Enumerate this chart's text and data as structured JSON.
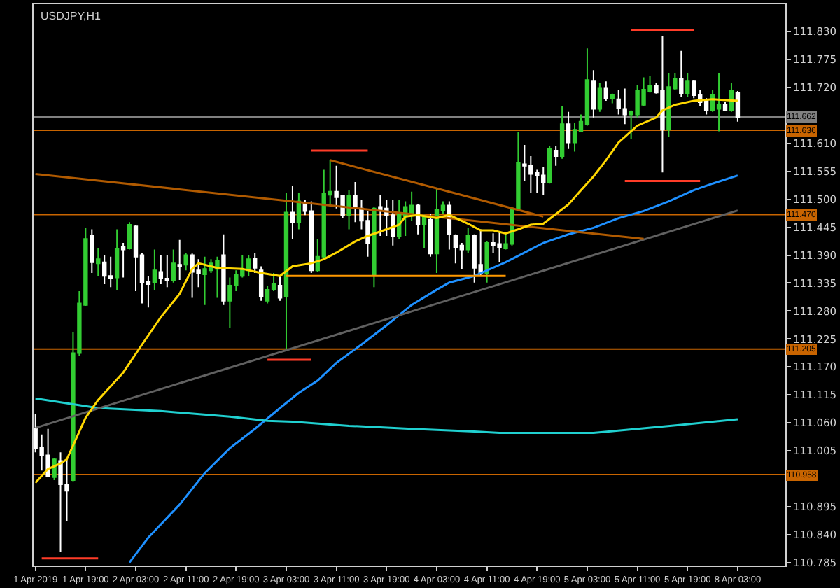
{
  "chart_data": {
    "type": "candlestick",
    "title": "USDJPY,H1",
    "categories": [
      "1 Apr 2019",
      null,
      null,
      null,
      null,
      null,
      null,
      null,
      "1 Apr 19:00",
      null,
      null,
      null,
      null,
      null,
      null,
      null,
      "2 Apr 03:00",
      null,
      null,
      null,
      null,
      null,
      null,
      null,
      "2 Apr 11:00",
      null,
      null,
      null,
      null,
      null,
      null,
      null,
      "2 Apr 19:00",
      null,
      null,
      null,
      null,
      null,
      null,
      null,
      "3 Apr 03:00",
      null,
      null,
      null,
      null,
      null,
      null,
      null,
      "3 Apr 11:00",
      null,
      null,
      null,
      null,
      null,
      null,
      null,
      "3 Apr 19:00",
      null,
      null,
      null,
      null,
      null,
      null,
      null,
      "4 Apr 03:00",
      null,
      null,
      null,
      null,
      null,
      null,
      null,
      "4 Apr 11:00",
      null,
      null,
      null,
      null,
      null,
      null,
      null,
      "4 Apr 19:00",
      null,
      null,
      null,
      null,
      null,
      null,
      null,
      "5 Apr 03:00",
      null,
      null,
      null,
      null,
      null,
      null,
      null,
      "5 Apr 11:00",
      null,
      null,
      null,
      null,
      null,
      null,
      null,
      "5 Apr 19:00",
      null,
      null,
      null,
      null,
      null,
      null,
      null,
      "8 Apr 03:00"
    ],
    "ohlc": [
      [
        111.048,
        111.078,
        111.002,
        111.01
      ],
      [
        111.012,
        111.037,
        110.966,
        110.996
      ],
      [
        110.996,
        111.048,
        110.953,
        110.955
      ],
      [
        110.953,
        110.99,
        110.947,
        110.988
      ],
      [
        110.985,
        111.002,
        110.806,
        110.939
      ],
      [
        110.939,
        110.988,
        110.866,
        110.926
      ],
      [
        110.947,
        111.238,
        110.945,
        111.197
      ],
      [
        111.197,
        111.319,
        111.192,
        111.295
      ],
      [
        111.292,
        111.444,
        111.29,
        111.422
      ],
      [
        111.428,
        111.441,
        111.355,
        111.376
      ],
      [
        111.374,
        111.403,
        111.349,
        111.382
      ],
      [
        111.376,
        111.39,
        111.333,
        111.349
      ],
      [
        111.349,
        111.387,
        111.327,
        111.344
      ],
      [
        111.346,
        111.441,
        111.322,
        111.403
      ],
      [
        111.406,
        111.414,
        111.346,
        111.401
      ],
      [
        111.403,
        111.455,
        111.401,
        111.45
      ],
      [
        111.447,
        111.45,
        111.319,
        111.387
      ],
      [
        111.39,
        111.395,
        111.295,
        111.336
      ],
      [
        111.338,
        111.349,
        111.287,
        111.333
      ],
      [
        111.336,
        111.401,
        111.322,
        111.36
      ],
      [
        111.357,
        111.39,
        111.333,
        111.344
      ],
      [
        111.344,
        111.39,
        111.327,
        111.341
      ],
      [
        111.341,
        111.401,
        111.336,
        111.374
      ],
      [
        111.371,
        111.42,
        111.341,
        111.368
      ],
      [
        111.371,
        111.395,
        111.36,
        111.39
      ],
      [
        111.39,
        111.393,
        111.306,
        111.357
      ],
      [
        111.36,
        111.382,
        111.327,
        111.355
      ],
      [
        111.352,
        111.387,
        111.292,
        111.363
      ],
      [
        111.36,
        111.382,
        111.355,
        111.374
      ],
      [
        111.363,
        111.387,
        111.306,
        111.379
      ],
      [
        111.39,
        111.431,
        111.292,
        111.3
      ],
      [
        111.3,
        111.346,
        111.246,
        111.33
      ],
      [
        111.33,
        111.36,
        111.319,
        111.352
      ],
      [
        111.349,
        111.39,
        111.346,
        111.36
      ],
      [
        111.36,
        111.39,
        111.349,
        111.382
      ],
      [
        111.384,
        111.395,
        111.355,
        111.365
      ],
      [
        111.36,
        111.368,
        111.3,
        111.308
      ],
      [
        111.3,
        111.33,
        111.295,
        111.322
      ],
      [
        111.322,
        111.355,
        111.319,
        111.333
      ],
      [
        111.33,
        111.349,
        111.3,
        111.306
      ],
      [
        111.308,
        111.512,
        111.205,
        111.474
      ],
      [
        111.474,
        111.526,
        111.422,
        111.455
      ],
      [
        111.455,
        111.512,
        111.441,
        111.496
      ],
      [
        111.493,
        111.499,
        111.469,
        111.477
      ],
      [
        111.477,
        111.496,
        111.355,
        111.36
      ],
      [
        111.36,
        111.422,
        111.357,
        111.387
      ],
      [
        111.387,
        111.558,
        111.382,
        111.512
      ],
      [
        111.509,
        111.577,
        111.485,
        111.515
      ],
      [
        111.515,
        111.566,
        111.482,
        111.504
      ],
      [
        111.507,
        111.509,
        111.463,
        111.469
      ],
      [
        111.469,
        111.518,
        111.441,
        111.507
      ],
      [
        111.507,
        111.534,
        111.455,
        111.485
      ],
      [
        111.482,
        111.499,
        111.441,
        111.458
      ],
      [
        111.458,
        111.477,
        111.387,
        111.414
      ],
      [
        111.352,
        111.485,
        111.327,
        111.482
      ],
      [
        111.485,
        111.509,
        111.428,
        111.479
      ],
      [
        111.482,
        111.499,
        111.428,
        111.469
      ],
      [
        111.469,
        111.499,
        111.409,
        111.428
      ],
      [
        111.428,
        111.499,
        111.422,
        111.471
      ],
      [
        111.466,
        111.496,
        111.428,
        111.485
      ],
      [
        111.471,
        111.515,
        111.458,
        111.488
      ],
      [
        111.488,
        111.491,
        111.431,
        111.45
      ],
      [
        111.45,
        111.471,
        111.403,
        111.466
      ],
      [
        111.46,
        111.471,
        111.387,
        111.393
      ],
      [
        111.393,
        111.523,
        111.355,
        111.479
      ],
      [
        111.479,
        111.496,
        111.471,
        111.488
      ],
      [
        111.488,
        111.496,
        111.401,
        111.431
      ],
      [
        111.428,
        111.431,
        111.374,
        111.406
      ],
      [
        111.409,
        111.414,
        111.363,
        111.401
      ],
      [
        111.401,
        111.444,
        111.395,
        111.428
      ],
      [
        111.428,
        111.431,
        111.336,
        111.365
      ],
      [
        111.371,
        111.441,
        111.349,
        111.355
      ],
      [
        111.355,
        111.417,
        111.336,
        111.414
      ],
      [
        111.414,
        111.433,
        111.395,
        111.409
      ],
      [
        111.412,
        111.436,
        111.376,
        111.406
      ],
      [
        111.403,
        111.436,
        111.401,
        111.412
      ],
      [
        111.412,
        111.485,
        111.409,
        111.482
      ],
      [
        111.482,
        111.632,
        111.477,
        111.572
      ],
      [
        111.569,
        111.607,
        111.536,
        111.566
      ],
      [
        111.566,
        111.585,
        111.512,
        111.55
      ],
      [
        111.553,
        111.558,
        111.512,
        111.547
      ],
      [
        111.547,
        111.564,
        111.509,
        111.534
      ],
      [
        111.534,
        111.605,
        111.531,
        111.599
      ],
      [
        111.596,
        111.605,
        111.566,
        111.585
      ],
      [
        111.585,
        111.683,
        111.58,
        111.648
      ],
      [
        111.648,
        111.672,
        111.599,
        111.612
      ],
      [
        111.612,
        111.651,
        111.594,
        111.637
      ],
      [
        111.634,
        111.667,
        111.632,
        111.653
      ],
      [
        111.648,
        111.797,
        111.645,
        111.735
      ],
      [
        111.732,
        111.754,
        111.661,
        111.678
      ],
      [
        111.678,
        111.729,
        111.672,
        111.718
      ],
      [
        111.718,
        111.732,
        111.694,
        111.699
      ],
      [
        111.699,
        111.708,
        111.689,
        111.705
      ],
      [
        111.697,
        111.716,
        111.667,
        111.68
      ],
      [
        111.678,
        111.718,
        111.648,
        111.667
      ],
      [
        111.667,
        111.675,
        111.618,
        111.672
      ],
      [
        111.667,
        111.724,
        111.661,
        111.713
      ],
      [
        111.686,
        111.74,
        111.683,
        111.716
      ],
      [
        111.713,
        111.743,
        111.71,
        111.724
      ],
      [
        111.724,
        111.729,
        111.708,
        111.71
      ],
      [
        111.713,
        111.822,
        111.553,
        111.637
      ],
      [
        111.637,
        111.748,
        111.623,
        111.721
      ],
      [
        111.718,
        111.748,
        111.716,
        111.737
      ],
      [
        111.737,
        111.792,
        111.702,
        111.708
      ],
      [
        111.708,
        111.748,
        111.702,
        111.732
      ],
      [
        111.732,
        111.735,
        111.699,
        111.705
      ],
      [
        111.705,
        111.716,
        111.683,
        111.691
      ],
      [
        111.694,
        111.699,
        111.667,
        111.675
      ],
      [
        111.675,
        111.716,
        111.672,
        111.705
      ],
      [
        111.678,
        111.748,
        111.634,
        111.686
      ],
      [
        111.686,
        111.691,
        111.675,
        111.675
      ],
      [
        111.675,
        111.729,
        111.672,
        111.713
      ],
      [
        111.71,
        111.713,
        111.653,
        111.662
      ]
    ],
    "colors": [
      "#ffffff",
      "#ffffff",
      "#ffffff",
      "#32cd32",
      "#ffffff",
      "#ffffff",
      "#32cd32",
      "#32cd32",
      "#32cd32",
      "#ffffff",
      "#32cd32",
      "#ffffff",
      "#ffffff",
      "#32cd32",
      "#ffffff",
      "#32cd32",
      "#ffffff",
      "#ffffff",
      "#ffffff",
      "#32cd32",
      "#ffffff",
      "#ffffff",
      "#32cd32",
      "#ffffff",
      "#32cd32",
      "#ffffff",
      "#ffffff",
      "#32cd32",
      "#32cd32",
      "#32cd32",
      "#ffffff",
      "#32cd32",
      "#32cd32",
      "#32cd32",
      "#32cd32",
      "#ffffff",
      "#ffffff",
      "#32cd32",
      "#32cd32",
      "#ffffff",
      "#32cd32",
      "#ffffff",
      "#32cd32",
      "#ffffff",
      "#ffffff",
      "#32cd32",
      "#32cd32",
      "#32cd32",
      "#ffffff",
      "#ffffff",
      "#32cd32",
      "#ffffff",
      "#ffffff",
      "#ffffff",
      "#32cd32",
      "#ffffff",
      "#ffffff",
      "#ffffff",
      "#32cd32",
      "#32cd32",
      "#32cd32",
      "#ffffff",
      "#32cd32",
      "#ffffff",
      "#32cd32",
      "#32cd32",
      "#ffffff",
      "#ffffff",
      "#ffffff",
      "#32cd32",
      "#ffffff",
      "#ffffff",
      "#32cd32",
      "#ffffff",
      "#ffffff",
      "#32cd32",
      "#32cd32",
      "#32cd32",
      "#ffffff",
      "#ffffff",
      "#ffffff",
      "#ffffff",
      "#32cd32",
      "#ffffff",
      "#32cd32",
      "#ffffff",
      "#32cd32",
      "#32cd32",
      "#32cd32",
      "#ffffff",
      "#32cd32",
      "#ffffff",
      "#32cd32",
      "#ffffff",
      "#ffffff",
      "#32cd32",
      "#32cd32",
      "#32cd32",
      "#32cd32",
      "#ffffff",
      "#ffffff",
      "#32cd32",
      "#32cd32",
      "#ffffff",
      "#32cd32",
      "#ffffff",
      "#ffffff",
      "#ffffff",
      "#32cd32",
      "#32cd32",
      "#ffffff",
      "#32cd32",
      "#ffffff"
    ],
    "series": [
      {
        "type": "line",
        "color": "#1e90ff",
        "values": [
          null,
          null,
          null,
          null,
          null,
          null,
          null,
          null,
          null,
          null,
          null,
          null,
          null,
          null,
          null,
          110.785,
          null,
          null,
          110.834,
          null,
          null,
          null,
          null,
          110.899,
          null,
          null,
          null,
          110.961,
          null,
          null,
          null,
          111.01,
          null,
          null,
          null,
          111.048,
          null,
          null,
          null,
          111.089,
          null,
          null,
          111.119,
          null,
          null,
          111.143,
          null,
          null,
          111.178,
          null,
          null,
          null,
          111.214,
          null,
          null,
          null,
          111.252,
          null,
          null,
          null,
          111.292,
          null,
          null,
          null,
          111.322,
          null,
          111.336,
          null,
          null,
          null,
          111.349,
          null,
          111.36,
          null,
          null,
          111.376,
          null,
          null,
          111.395,
          null,
          null,
          111.414,
          null,
          null,
          null,
          111.431,
          null,
          null,
          null,
          111.444,
          null,
          null,
          null,
          111.463,
          null,
          null,
          null,
          111.477,
          null,
          null,
          null,
          111.496,
          null,
          null,
          null,
          111.518,
          null,
          null,
          111.531,
          null,
          null,
          null,
          111.547
        ]
      },
      {
        "type": "line",
        "color": "#20d0d0",
        "values": [
          111.108,
          null,
          null,
          null,
          null,
          null,
          null,
          null,
          null,
          null,
          111.089,
          null,
          null,
          null,
          null,
          null,
          null,
          null,
          null,
          null,
          111.083,
          null,
          null,
          null,
          null,
          null,
          null,
          null,
          null,
          null,
          null,
          111.072,
          null,
          null,
          null,
          null,
          null,
          111.064,
          null,
          null,
          null,
          111.062,
          null,
          null,
          null,
          null,
          null,
          null,
          null,
          null,
          111.054,
          null,
          null,
          null,
          null,
          null,
          null,
          null,
          null,
          null,
          111.048,
          null,
          null,
          null,
          null,
          null,
          null,
          null,
          null,
          null,
          111.043,
          null,
          null,
          null,
          111.04,
          null,
          null,
          null,
          null,
          null,
          null,
          111.04,
          null,
          null,
          null,
          null,
          null,
          null,
          null,
          111.04,
          null,
          null,
          null,
          null,
          null,
          null,
          111.048,
          null,
          null,
          null,
          null,
          null,
          null,
          111.056,
          null,
          null,
          null,
          null,
          null,
          null,
          null,
          null,
          111.067
        ]
      },
      {
        "type": "line",
        "color": "#606060",
        "values": [
          111.05,
          null,
          null,
          null,
          null,
          null,
          null,
          null,
          null,
          null,
          null,
          null,
          null,
          null,
          null,
          null,
          null,
          null,
          null,
          null,
          null,
          null,
          null,
          null,
          null,
          null,
          null,
          null,
          null,
          null,
          null,
          null,
          null,
          null,
          null,
          null,
          null,
          null,
          null,
          null,
          null,
          null,
          null,
          null,
          null,
          null,
          null,
          null,
          null,
          null,
          null,
          null,
          null,
          null,
          null,
          null,
          null,
          null,
          null,
          null,
          null,
          null,
          null,
          null,
          null,
          null,
          null,
          null,
          null,
          null,
          null,
          null,
          null,
          null,
          null,
          null,
          null,
          null,
          null,
          null,
          null,
          null,
          null,
          null,
          null,
          null,
          null,
          null,
          null,
          null,
          null,
          null,
          null,
          null,
          null,
          null,
          null,
          null,
          null,
          null,
          null,
          null,
          null,
          null,
          null,
          null,
          null,
          null,
          null,
          null,
          null,
          null,
          111.478
        ]
      },
      {
        "type": "line",
        "color": "#b05a00",
        "values": [
          111.55,
          null,
          null,
          null,
          null,
          null,
          null,
          null,
          null,
          null,
          null,
          null,
          null,
          null,
          null,
          null,
          null,
          null,
          null,
          null,
          null,
          null,
          null,
          null,
          null,
          null,
          null,
          null,
          null,
          null,
          null,
          null,
          null,
          null,
          null,
          null,
          null,
          null,
          null,
          null,
          null,
          null,
          null,
          null,
          null,
          null,
          null,
          null,
          null,
          null,
          null,
          null,
          null,
          null,
          null,
          null,
          null,
          null,
          null,
          null,
          null,
          null,
          null,
          null,
          null,
          null,
          null,
          null,
          null,
          null,
          null,
          null,
          null,
          null,
          null,
          null,
          null,
          null,
          null,
          null,
          null,
          null,
          null,
          null,
          null,
          null,
          null,
          null,
          null,
          null,
          null,
          null,
          null,
          null,
          null,
          null,
          null,
          111.422,
          null,
          null,
          null,
          null,
          null,
          null,
          null,
          null,
          null,
          null,
          null,
          null,
          null,
          null,
          null
        ]
      },
      {
        "type": "line",
        "color": "#b05a00",
        "values": [
          null,
          null,
          null,
          null,
          null,
          null,
          null,
          null,
          null,
          null,
          null,
          null,
          null,
          null,
          null,
          null,
          null,
          null,
          null,
          null,
          null,
          null,
          null,
          null,
          null,
          null,
          null,
          null,
          null,
          null,
          null,
          null,
          null,
          null,
          null,
          null,
          null,
          null,
          null,
          null,
          null,
          null,
          null,
          null,
          null,
          null,
          null,
          111.577,
          null,
          null,
          null,
          null,
          null,
          null,
          null,
          null,
          null,
          null,
          null,
          null,
          null,
          null,
          null,
          null,
          null,
          null,
          null,
          null,
          null,
          null,
          null,
          null,
          null,
          null,
          null,
          null,
          null,
          null,
          null,
          null,
          null,
          111.466,
          null,
          null,
          null,
          null,
          null,
          null,
          null,
          null,
          null,
          null,
          null,
          null,
          null,
          null,
          null,
          null,
          null,
          null,
          null,
          null,
          null,
          null,
          null,
          null,
          null,
          null,
          null,
          null,
          null,
          null,
          null
        ]
      },
      {
        "type": "line",
        "color": "#ff9900",
        "values": [
          null,
          null,
          null,
          null,
          null,
          null,
          null,
          null,
          null,
          null,
          null,
          null,
          null,
          null,
          null,
          null,
          null,
          null,
          null,
          null,
          null,
          null,
          null,
          null,
          null,
          null,
          null,
          null,
          null,
          null,
          null,
          null,
          null,
          null,
          null,
          null,
          null,
          null,
          null,
          null,
          111.349,
          null,
          null,
          null,
          null,
          null,
          null,
          null,
          null,
          null,
          null,
          null,
          null,
          null,
          null,
          null,
          null,
          null,
          null,
          null,
          null,
          null,
          null,
          null,
          null,
          null,
          null,
          null,
          null,
          null,
          null,
          null,
          null,
          null,
          null,
          111.349,
          null,
          null,
          null,
          null,
          null,
          null,
          null,
          null,
          null,
          null,
          null,
          null,
          null,
          null,
          null,
          null,
          null,
          null,
          null,
          null,
          null,
          null,
          null,
          null,
          null,
          null,
          null,
          null,
          null,
          null,
          null,
          null,
          null,
          null,
          null,
          null,
          null
        ]
      },
      {
        "type": "line",
        "color": "#ff3c28",
        "values": [
          null,
          110.793,
          null,
          null,
          null,
          null,
          null,
          null,
          null,
          null,
          110.793,
          null,
          null,
          null,
          null,
          null,
          null,
          null,
          null,
          null,
          null,
          null,
          null,
          null,
          null,
          null,
          null,
          null,
          null,
          null,
          null,
          null,
          null,
          null,
          null,
          null,
          null,
          null,
          null,
          null,
          null,
          null,
          null,
          null,
          null,
          null,
          null,
          null,
          null,
          null,
          null,
          null,
          null,
          null,
          null,
          null,
          null,
          null,
          null,
          null,
          null,
          null,
          null,
          null,
          null,
          null,
          null,
          null,
          null,
          null,
          null,
          null,
          null,
          null,
          null,
          null,
          null,
          null,
          null,
          null,
          null,
          null,
          null,
          null,
          null,
          null,
          null,
          null,
          null,
          null,
          null,
          null,
          null,
          null,
          null,
          null,
          null,
          null,
          null,
          null,
          null,
          null,
          null,
          null,
          null,
          null,
          null,
          null,
          null,
          null,
          null,
          null,
          null
        ]
      },
      {
        "type": "line",
        "color": "#ff3c28",
        "values": [
          null,
          null,
          null,
          null,
          null,
          null,
          null,
          null,
          null,
          null,
          null,
          null,
          null,
          null,
          null,
          null,
          null,
          null,
          null,
          null,
          null,
          null,
          null,
          null,
          null,
          null,
          null,
          null,
          null,
          null,
          null,
          null,
          null,
          null,
          null,
          null,
          null,
          111.184,
          null,
          null,
          null,
          null,
          null,
          null,
          111.184,
          null,
          null,
          null,
          null,
          null,
          null,
          null,
          null,
          null,
          null,
          null,
          null,
          null,
          null,
          null,
          null,
          null,
          null,
          null,
          null,
          null,
          null,
          null,
          null,
          null,
          null,
          null,
          null,
          null,
          null,
          null,
          null,
          null,
          null,
          null,
          null,
          null,
          null,
          null,
          null,
          null,
          null,
          null,
          null,
          null,
          null,
          null,
          null,
          null,
          null,
          null,
          null,
          null,
          null,
          null,
          null,
          null,
          null,
          null,
          null,
          null,
          null,
          null,
          null,
          null,
          null,
          null,
          null
        ]
      },
      {
        "type": "line",
        "color": "#ff3c28",
        "values": [
          null,
          null,
          null,
          null,
          null,
          null,
          null,
          null,
          null,
          null,
          null,
          null,
          null,
          null,
          null,
          null,
          null,
          null,
          null,
          null,
          null,
          null,
          null,
          null,
          null,
          null,
          null,
          null,
          null,
          null,
          null,
          null,
          null,
          null,
          null,
          null,
          null,
          null,
          null,
          null,
          null,
          null,
          null,
          null,
          111.596,
          null,
          null,
          null,
          null,
          null,
          null,
          null,
          null,
          111.596,
          null,
          null,
          null,
          null,
          null,
          null,
          null,
          null,
          null,
          null,
          null,
          null,
          null,
          null,
          null,
          null,
          null,
          null,
          null,
          null,
          null,
          null,
          null,
          null,
          null,
          null,
          null,
          null,
          null,
          null,
          null,
          null,
          null,
          null,
          null,
          null,
          null,
          null,
          null,
          null,
          null,
          null,
          null,
          null,
          null,
          null,
          null,
          null,
          null,
          null,
          null,
          null,
          null,
          null,
          null,
          null,
          null,
          null,
          null
        ]
      },
      {
        "type": "line",
        "color": "#ff3c28",
        "values": [
          null,
          null,
          null,
          null,
          null,
          null,
          null,
          null,
          null,
          null,
          null,
          null,
          null,
          null,
          null,
          null,
          null,
          null,
          null,
          null,
          null,
          null,
          null,
          null,
          null,
          null,
          null,
          null,
          null,
          null,
          null,
          null,
          null,
          null,
          null,
          null,
          null,
          null,
          null,
          null,
          null,
          null,
          null,
          null,
          null,
          null,
          null,
          null,
          null,
          null,
          null,
          null,
          null,
          null,
          null,
          null,
          null,
          null,
          null,
          null,
          null,
          null,
          null,
          null,
          null,
          null,
          null,
          null,
          null,
          null,
          null,
          null,
          null,
          null,
          null,
          null,
          null,
          null,
          null,
          null,
          null,
          null,
          null,
          null,
          null,
          null,
          null,
          null,
          null,
          null,
          null,
          null,
          null,
          null,
          null,
          111.833,
          null,
          null,
          null,
          null,
          null,
          null,
          null,
          null,
          null,
          111.833,
          null,
          null,
          null,
          null,
          null,
          null,
          null
        ]
      },
      {
        "type": "line",
        "color": "#ff3c28",
        "values": [
          null,
          null,
          null,
          null,
          null,
          null,
          null,
          null,
          null,
          null,
          null,
          null,
          null,
          null,
          null,
          null,
          null,
          null,
          null,
          null,
          null,
          null,
          null,
          null,
          null,
          null,
          null,
          null,
          null,
          null,
          null,
          null,
          null,
          null,
          null,
          null,
          null,
          null,
          null,
          null,
          null,
          null,
          null,
          null,
          null,
          null,
          null,
          null,
          null,
          null,
          null,
          null,
          null,
          null,
          null,
          null,
          null,
          null,
          null,
          null,
          null,
          null,
          null,
          null,
          null,
          null,
          null,
          null,
          null,
          null,
          null,
          null,
          null,
          null,
          null,
          null,
          null,
          null,
          null,
          null,
          null,
          null,
          null,
          null,
          null,
          null,
          null,
          null,
          null,
          null,
          null,
          null,
          null,
          null,
          111.536,
          null,
          null,
          null,
          null,
          null,
          null,
          null,
          null,
          null,
          null,
          null,
          111.536,
          null,
          null,
          null,
          null,
          null,
          null
        ]
      },
      {
        "type": "line",
        "color": "#ffd700",
        "values": [
          110.942,
          null,
          110.969,
          null,
          110.98,
          110.988,
          null,
          null,
          111.07,
          null,
          111.105,
          null,
          null,
          null,
          111.159,
          null,
          null,
          111.214,
          null,
          null,
          111.268,
          null,
          null,
          111.314,
          null,
          111.363,
          111.374,
          null,
          null,
          111.365,
          null,
          null,
          null,
          111.363,
          null,
          null,
          111.355,
          null,
          null,
          111.349,
          null,
          111.368,
          null,
          null,
          111.374,
          null,
          111.382,
          null,
          111.395,
          null,
          null,
          111.417,
          null,
          111.428,
          null,
          null,
          111.441,
          null,
          111.45,
          111.466,
          null,
          111.469,
          null,
          null,
          111.463,
          null,
          111.469,
          null,
          null,
          111.452,
          null,
          111.439,
          null,
          111.439,
          null,
          111.433,
          null,
          111.441,
          null,
          111.45,
          null,
          111.452,
          null,
          111.471,
          null,
          111.49,
          null,
          111.518,
          null,
          111.545,
          null,
          111.577,
          null,
          111.612,
          null,
          null,
          111.645,
          null,
          null,
          111.661,
          111.675,
          null,
          111.686,
          null,
          null,
          111.694,
          null,
          null,
          111.697,
          null,
          null,
          null,
          111.694
        ]
      }
    ],
    "ref_lines": [
      {
        "axis": "y",
        "value": 111.662,
        "label": "111.662",
        "color": "#808080"
      },
      {
        "axis": "y",
        "value": 111.636,
        "label": "111.636",
        "color": "#c86400"
      },
      {
        "axis": "y",
        "value": 111.47,
        "label": "111.470",
        "color": "#c86400"
      },
      {
        "axis": "y",
        "value": 111.205,
        "label": "111.205",
        "color": "#c86400"
      },
      {
        "axis": "y",
        "value": 110.958,
        "label": "110.958",
        "color": "#c86400"
      }
    ],
    "ylim": [
      110.779,
      111.884
    ],
    "yticks": [
      {
        "value": 111.83,
        "label": "111.830"
      },
      {
        "value": 111.775,
        "label": "111.775"
      },
      {
        "value": 111.72,
        "label": "111.720"
      },
      {
        "value": 111.61,
        "label": "111.610"
      },
      {
        "value": 111.555,
        "label": "111.555"
      },
      {
        "value": 111.5,
        "label": "111.500"
      },
      {
        "value": 111.445,
        "label": "111.445"
      },
      {
        "value": 111.39,
        "label": "111.390"
      },
      {
        "value": 111.335,
        "label": "111.335"
      },
      {
        "value": 111.28,
        "label": "111.280"
      },
      {
        "value": 111.225,
        "label": "111.225"
      },
      {
        "value": 111.17,
        "label": "111.170"
      },
      {
        "value": 111.115,
        "label": "111.115"
      },
      {
        "value": 111.06,
        "label": "111.060"
      },
      {
        "value": 111.005,
        "label": "111.005"
      },
      {
        "value": 110.895,
        "label": "110.895"
      },
      {
        "value": 110.84,
        "label": "110.840"
      },
      {
        "value": 110.785,
        "label": "110.785"
      }
    ]
  }
}
